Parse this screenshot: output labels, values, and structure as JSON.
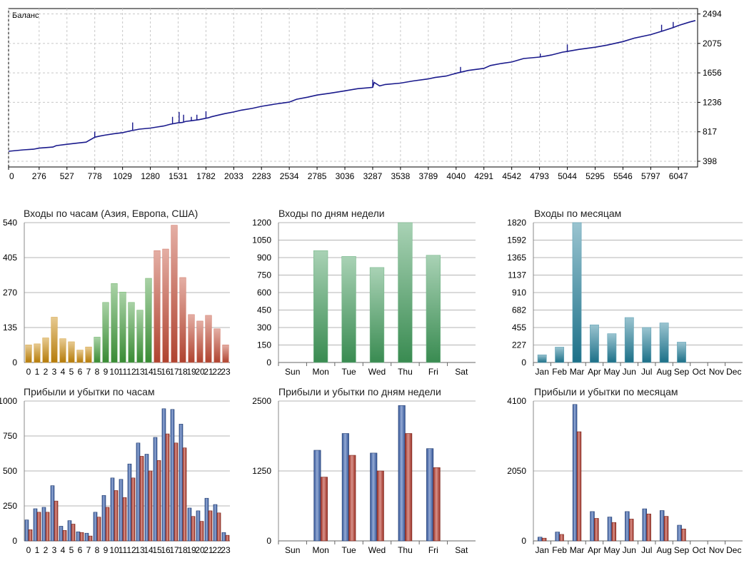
{
  "chart_data": [
    {
      "id": "balance",
      "type": "line",
      "title": "Баланс",
      "x": [
        0,
        135,
        225,
        276,
        400,
        430,
        527,
        640,
        700,
        778,
        820,
        870,
        950,
        1029,
        1100,
        1180,
        1280,
        1340,
        1400,
        1460,
        1531,
        1570,
        1600,
        1650,
        1720,
        1782,
        1800,
        1830,
        1880,
        1950,
        2033,
        2100,
        2200,
        2283,
        2400,
        2534,
        2600,
        2700,
        2785,
        2900,
        3036,
        3150,
        3287,
        3300,
        3350,
        3400,
        3538,
        3650,
        3789,
        3850,
        3950,
        4040,
        4150,
        4291,
        4350,
        4450,
        4542,
        4650,
        4793,
        4900,
        5000,
        5044,
        5150,
        5295,
        5400,
        5546,
        5650,
        5797,
        5900,
        6000,
        6047,
        6150,
        6200
      ],
      "y": [
        540,
        560,
        570,
        585,
        600,
        620,
        640,
        660,
        670,
        740,
        755,
        770,
        790,
        805,
        830,
        855,
        870,
        885,
        900,
        925,
        945,
        950,
        965,
        975,
        990,
        1010,
        1015,
        1030,
        1050,
        1075,
        1100,
        1125,
        1150,
        1180,
        1210,
        1240,
        1280,
        1310,
        1340,
        1365,
        1400,
        1430,
        1450,
        1520,
        1470,
        1490,
        1510,
        1540,
        1570,
        1590,
        1610,
        1650,
        1690,
        1720,
        1760,
        1790,
        1810,
        1860,
        1880,
        1910,
        1950,
        1960,
        1990,
        2020,
        2050,
        2100,
        2150,
        2200,
        2250,
        2300,
        2330,
        2380,
        2400
      ],
      "spikes": [
        [
          778,
          820
        ],
        [
          1120,
          950
        ],
        [
          1480,
          1030
        ],
        [
          1540,
          1100
        ],
        [
          1580,
          1060
        ],
        [
          1650,
          1030
        ],
        [
          1700,
          1060
        ],
        [
          1782,
          1110
        ],
        [
          3287,
          1560
        ],
        [
          4080,
          1740
        ],
        [
          4800,
          1930
        ],
        [
          5044,
          2060
        ],
        [
          5895,
          2340
        ],
        [
          6000,
          2380
        ]
      ],
      "xticks": [
        "0",
        "276",
        "527",
        "778",
        "1029",
        "1280",
        "1531",
        "1782",
        "2033",
        "2283",
        "2534",
        "2785",
        "3036",
        "3287",
        "3538",
        "3789",
        "4040",
        "4291",
        "4542",
        "4793",
        "5044",
        "5295",
        "5546",
        "5797",
        "6047"
      ],
      "yticks": [
        "2494",
        "2075",
        "1656",
        "1236",
        "817",
        "398"
      ],
      "xlim": [
        0,
        6220
      ],
      "ylim": [
        398,
        2494
      ],
      "color": "#1a1a8c"
    },
    {
      "id": "entries-hours",
      "type": "bar",
      "title": "Входы по часам (Азия, Европа, США)",
      "categories": [
        "0",
        "1",
        "2",
        "3",
        "4",
        "5",
        "6",
        "7",
        "8",
        "9",
        "10",
        "11",
        "12",
        "13",
        "14",
        "15",
        "16",
        "17",
        "18",
        "19",
        "20",
        "21",
        "22",
        "23"
      ],
      "values": [
        68,
        72,
        95,
        175,
        92,
        80,
        48,
        60,
        98,
        232,
        305,
        272,
        232,
        202,
        325,
        432,
        438,
        530,
        328,
        185,
        160,
        182,
        130,
        68
      ],
      "yticks": [
        "540",
        "405",
        "270",
        "135",
        "0"
      ],
      "ylim": [
        0,
        540
      ],
      "colors": [
        "#c9890a",
        "#c9890a",
        "#c9890a",
        "#c9890a",
        "#c9890a",
        "#c9890a",
        "#c9890a",
        "#c9890a",
        "#3f9a3a",
        "#3f9a3a",
        "#3f9a3a",
        "#3f9a3a",
        "#3f9a3a",
        "#3f9a3a",
        "#3f9a3a",
        "#c24a34",
        "#c24a34",
        "#c24a34",
        "#c24a34",
        "#c24a34",
        "#c24a34",
        "#c24a34",
        "#c24a34",
        "#c24a34"
      ]
    },
    {
      "id": "entries-weekdays",
      "type": "bar",
      "title": "Входы по дням недели",
      "categories": [
        "Sun",
        "Mon",
        "Tue",
        "Wed",
        "Thu",
        "Fri",
        "Sat"
      ],
      "values": [
        0,
        960,
        910,
        815,
        1200,
        920,
        0
      ],
      "yticks": [
        "1200",
        "1050",
        "900",
        "750",
        "600",
        "450",
        "300",
        "150",
        "0"
      ],
      "ylim": [
        0,
        1200
      ],
      "color": "#3f9a5a"
    },
    {
      "id": "entries-months",
      "type": "bar",
      "title": "Входы по месяцам",
      "categories": [
        "Jan",
        "Feb",
        "Mar",
        "Apr",
        "May",
        "Jun",
        "Jul",
        "Aug",
        "Sep",
        "Oct",
        "Nov",
        "Dec"
      ],
      "values": [
        100,
        200,
        1820,
        490,
        375,
        585,
        455,
        515,
        265,
        0,
        0,
        0
      ],
      "yticks": [
        "1820",
        "1592",
        "1365",
        "1137",
        "910",
        "682",
        "455",
        "227",
        "0"
      ],
      "ylim": [
        0,
        1820
      ],
      "color": "#1f7c97"
    },
    {
      "id": "pl-hours",
      "type": "bar",
      "title": "Прибыли и убытки по часам",
      "categories": [
        "0",
        "1",
        "2",
        "3",
        "4",
        "5",
        "6",
        "7",
        "8",
        "9",
        "10",
        "11",
        "12",
        "13",
        "14",
        "15",
        "16",
        "17",
        "18",
        "19",
        "20",
        "21",
        "22",
        "23"
      ],
      "series": [
        {
          "values": [
            150,
            230,
            240,
            395,
            105,
            145,
            65,
            55,
            205,
            325,
            450,
            440,
            550,
            700,
            620,
            740,
            945,
            940,
            835,
            235,
            215,
            305,
            260,
            60
          ],
          "color": "#3b63b0"
        },
        {
          "values": [
            80,
            205,
            205,
            285,
            75,
            120,
            60,
            35,
            170,
            240,
            360,
            310,
            450,
            605,
            500,
            575,
            765,
            700,
            665,
            175,
            140,
            215,
            200,
            40
          ],
          "color": "#b8382a"
        }
      ],
      "yticks": [
        "1000",
        "750",
        "500",
        "250",
        "0"
      ],
      "ylim": [
        0,
        1000
      ]
    },
    {
      "id": "pl-weekdays",
      "type": "bar",
      "title": "Прибыли и убытки по дням недели",
      "categories": [
        "Sun",
        "Mon",
        "Tue",
        "Wed",
        "Thu",
        "Fri",
        "Sat"
      ],
      "series": [
        {
          "values": [
            0,
            1620,
            1920,
            1570,
            2420,
            1650,
            0
          ],
          "color": "#3b63b0"
        },
        {
          "values": [
            0,
            1140,
            1530,
            1250,
            1920,
            1310,
            0
          ],
          "color": "#b8382a"
        }
      ],
      "yticks": [
        "2500",
        "1250",
        "0"
      ],
      "ylim": [
        0,
        2500
      ]
    },
    {
      "id": "pl-months",
      "type": "bar",
      "title": "Прибыли и убытки по месяцам",
      "categories": [
        "Jan",
        "Feb",
        "Mar",
        "Apr",
        "May",
        "Jun",
        "Jul",
        "Aug",
        "Sep",
        "Oct",
        "Nov",
        "Dec"
      ],
      "series": [
        {
          "values": [
            110,
            260,
            4000,
            860,
            700,
            860,
            940,
            890,
            460,
            0,
            0,
            0
          ],
          "color": "#3b63b0"
        },
        {
          "values": [
            80,
            190,
            3200,
            660,
            540,
            640,
            790,
            720,
            350,
            0,
            0,
            0
          ],
          "color": "#b8382a"
        }
      ],
      "yticks": [
        "4100",
        "2050",
        "0"
      ],
      "ylim": [
        0,
        4100
      ]
    }
  ]
}
